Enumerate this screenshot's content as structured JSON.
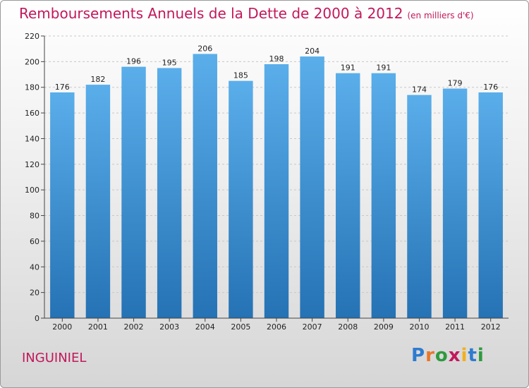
{
  "title": "Remboursements Annuels de la Dette de 2000 à 2012",
  "subtitle": "(en milliers d'€)",
  "place": "INGUINIEL",
  "logo": {
    "letters": [
      "P",
      "r",
      "o",
      "x",
      "i",
      "t",
      "i"
    ],
    "colors": [
      "#2e7bcf",
      "#e8762b",
      "#2e9a3e",
      "#c2185b",
      "#f2b01e",
      "#2e7bcf",
      "#2e9a3e"
    ]
  },
  "colors": {
    "bar_top": "#5aaeea",
    "bar_bottom": "#2572b4",
    "title": "#c2185b"
  },
  "chart_data": {
    "type": "bar",
    "categories": [
      "2000",
      "2001",
      "2002",
      "2003",
      "2004",
      "2005",
      "2006",
      "2007",
      "2008",
      "2009",
      "2010",
      "2011",
      "2012"
    ],
    "values": [
      176,
      182,
      196,
      195,
      206,
      185,
      198,
      204,
      191,
      191,
      174,
      179,
      176
    ],
    "ylim": [
      0,
      220
    ],
    "yticks": [
      0,
      20,
      40,
      60,
      80,
      100,
      120,
      140,
      160,
      180,
      200,
      220
    ],
    "grid": true,
    "legend": "none"
  }
}
